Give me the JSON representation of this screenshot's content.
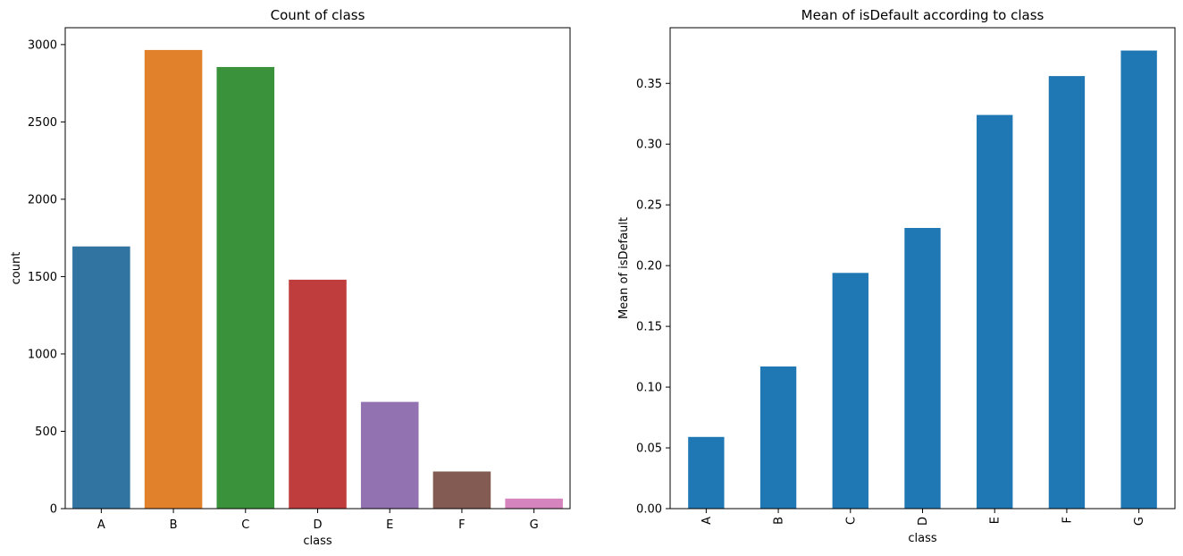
{
  "chart_data": [
    {
      "type": "bar",
      "title": "Count of class",
      "xlabel": "class",
      "ylabel": "count",
      "categories": [
        "A",
        "B",
        "C",
        "D",
        "E",
        "F",
        "G"
      ],
      "values": [
        1695,
        2965,
        2855,
        1480,
        690,
        240,
        65
      ],
      "ylim": [
        0,
        3109
      ],
      "yticks": [
        0,
        500,
        1000,
        1500,
        2000,
        2500,
        3000
      ],
      "ytick_labels": [
        "0",
        "500",
        "1000",
        "1500",
        "2000",
        "2500",
        "3000"
      ],
      "colors": [
        "#3274a1",
        "#e1812c",
        "#3a923a",
        "#c03d3e",
        "#9372b2",
        "#845b53",
        "#d684bd"
      ],
      "xtick_rotation": 0,
      "grid": false
    },
    {
      "type": "bar",
      "title": "Mean of isDefault according to class",
      "xlabel": "class",
      "ylabel": "Mean of isDefault",
      "categories": [
        "A",
        "B",
        "C",
        "D",
        "E",
        "F",
        "G"
      ],
      "values": [
        0.059,
        0.117,
        0.194,
        0.231,
        0.324,
        0.356,
        0.377
      ],
      "ylim": [
        0,
        0.3958
      ],
      "yticks": [
        0,
        0.05,
        0.1,
        0.15,
        0.2,
        0.25,
        0.3,
        0.35
      ],
      "ytick_labels": [
        "0.00",
        "0.05",
        "0.10",
        "0.15",
        "0.20",
        "0.25",
        "0.30",
        "0.35"
      ],
      "colors": [
        "#1f77b4"
      ],
      "xtick_rotation": -90,
      "grid": false
    }
  ]
}
